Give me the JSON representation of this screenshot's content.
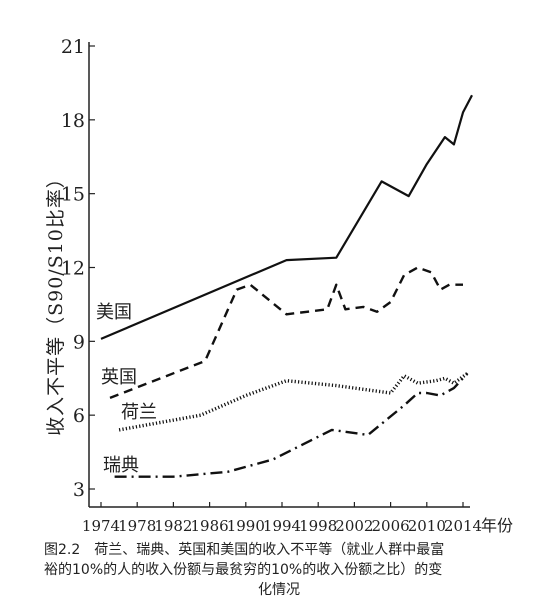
{
  "chart_data": {
    "type": "line",
    "ylabel": "收入不平等（S90/S10比率）",
    "xlabel": "年份",
    "ylim": [
      3,
      21
    ],
    "yticks": [
      "3",
      "6",
      "9",
      "12",
      "15",
      "18",
      "21"
    ],
    "xlim": [
      1974,
      2014
    ],
    "xticks": [
      "1974",
      "1978",
      "1982",
      "1986",
      "1990",
      "1994",
      "1998",
      "2002",
      "2006",
      "2010",
      "2014"
    ],
    "grid": false,
    "series": [
      {
        "name": "美国",
        "style": "solid",
        "points": [
          [
            1974,
            9.1
          ],
          [
            1994.5,
            12.3
          ],
          [
            2000,
            12.4
          ],
          [
            2005,
            15.5
          ],
          [
            2008,
            14.9
          ],
          [
            2010,
            16.2
          ],
          [
            2012,
            17.3
          ],
          [
            2013,
            17.0
          ],
          [
            2014,
            18.3
          ],
          [
            2015,
            19.0
          ]
        ]
      },
      {
        "name": "英国",
        "style": "dashed",
        "points": [
          [
            1975,
            6.7
          ],
          [
            1985.5,
            8.2
          ],
          [
            1989,
            11.1
          ],
          [
            1990.5,
            11.3
          ],
          [
            1994.5,
            10.1
          ],
          [
            1999,
            10.3
          ],
          [
            2000,
            11.3
          ],
          [
            2001,
            10.3
          ],
          [
            2003,
            10.4
          ],
          [
            2004.5,
            10.2
          ],
          [
            2006,
            10.6
          ],
          [
            2007.5,
            11.7
          ],
          [
            2009,
            12.0
          ],
          [
            2010.5,
            11.8
          ],
          [
            2011.5,
            11.1
          ],
          [
            2012.5,
            11.3
          ],
          [
            2014,
            11.3
          ]
        ]
      },
      {
        "name": "荷兰",
        "style": "dotted",
        "points": [
          [
            1976,
            5.4
          ],
          [
            1985,
            6.0
          ],
          [
            1990,
            6.8
          ],
          [
            1994.5,
            7.4
          ],
          [
            2000,
            7.2
          ],
          [
            2006,
            6.9
          ],
          [
            2007.5,
            7.6
          ],
          [
            2009,
            7.3
          ],
          [
            2011,
            7.4
          ],
          [
            2012,
            7.5
          ],
          [
            2013,
            7.3
          ],
          [
            2014.5,
            7.7
          ]
        ]
      },
      {
        "name": "瑞典",
        "style": "dashdot",
        "points": [
          [
            1975.5,
            3.5
          ],
          [
            1982,
            3.5
          ],
          [
            1988,
            3.7
          ],
          [
            1993,
            4.2
          ],
          [
            1999.5,
            5.4
          ],
          [
            2003.5,
            5.2
          ],
          [
            2005.5,
            5.8
          ],
          [
            2007.5,
            6.4
          ],
          [
            2009,
            6.9
          ],
          [
            2010,
            6.9
          ],
          [
            2011.5,
            6.8
          ],
          [
            2013,
            7.1
          ],
          [
            2014.5,
            7.7
          ]
        ]
      }
    ]
  },
  "caption": {
    "line1": "图2.2　荷兰、瑞典、英国和美国的收入不平等（就业人群中最富",
    "line2": "裕的10%的人的收入份额与最贫穷的10%的收入份额之比）的变",
    "line3": "化情况"
  }
}
